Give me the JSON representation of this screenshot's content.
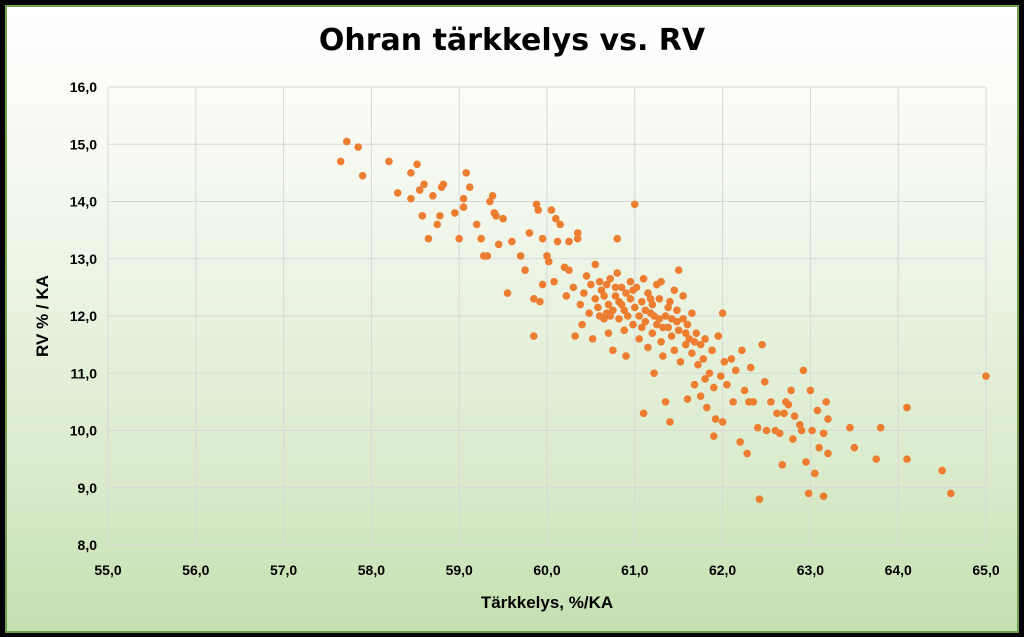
{
  "chart_data": {
    "type": "scatter",
    "title": "Ohran tärkkelys vs. RV",
    "xlabel": "Tärkkelys, %/KA",
    "ylabel": "RV % / KA",
    "xlim": [
      55,
      65
    ],
    "ylim": [
      8,
      16
    ],
    "x_ticks": [
      "55,0",
      "56,0",
      "57,0",
      "58,0",
      "59,0",
      "60,0",
      "61,0",
      "62,0",
      "63,0",
      "64,0",
      "65,0"
    ],
    "y_ticks": [
      "8,0",
      "9,0",
      "10,0",
      "11,0",
      "12,0",
      "13,0",
      "14,0",
      "15,0",
      "16,0"
    ],
    "grid": true,
    "legend": "none",
    "point_color": "#ed7d31",
    "points": [
      [
        57.65,
        14.7
      ],
      [
        57.72,
        15.05
      ],
      [
        57.85,
        14.95
      ],
      [
        57.9,
        14.45
      ],
      [
        58.2,
        14.7
      ],
      [
        58.3,
        14.15
      ],
      [
        58.45,
        14.5
      ],
      [
        58.45,
        14.05
      ],
      [
        58.52,
        14.65
      ],
      [
        58.55,
        14.2
      ],
      [
        58.58,
        13.75
      ],
      [
        58.6,
        14.3
      ],
      [
        58.65,
        13.35
      ],
      [
        58.7,
        14.1
      ],
      [
        58.75,
        13.6
      ],
      [
        58.78,
        13.75
      ],
      [
        58.8,
        14.25
      ],
      [
        58.82,
        14.3
      ],
      [
        58.95,
        13.8
      ],
      [
        59.0,
        13.35
      ],
      [
        59.05,
        14.05
      ],
      [
        59.05,
        13.9
      ],
      [
        59.08,
        14.5
      ],
      [
        59.12,
        14.25
      ],
      [
        59.2,
        13.6
      ],
      [
        59.25,
        13.35
      ],
      [
        59.28,
        13.05
      ],
      [
        59.32,
        13.05
      ],
      [
        59.35,
        14.0
      ],
      [
        59.38,
        14.1
      ],
      [
        59.4,
        13.8
      ],
      [
        59.42,
        13.75
      ],
      [
        59.45,
        13.25
      ],
      [
        59.5,
        13.7
      ],
      [
        59.55,
        12.4
      ],
      [
        59.6,
        13.3
      ],
      [
        59.7,
        13.05
      ],
      [
        59.75,
        12.8
      ],
      [
        59.8,
        13.45
      ],
      [
        59.85,
        12.3
      ],
      [
        59.85,
        11.65
      ],
      [
        59.88,
        13.95
      ],
      [
        59.9,
        13.85
      ],
      [
        59.92,
        12.25
      ],
      [
        59.95,
        12.55
      ],
      [
        59.95,
        13.35
      ],
      [
        60.0,
        13.05
      ],
      [
        60.02,
        12.95
      ],
      [
        60.05,
        13.85
      ],
      [
        60.08,
        12.6
      ],
      [
        60.1,
        13.7
      ],
      [
        60.12,
        13.3
      ],
      [
        60.15,
        13.6
      ],
      [
        60.2,
        12.85
      ],
      [
        60.22,
        12.35
      ],
      [
        60.25,
        12.8
      ],
      [
        60.25,
        13.3
      ],
      [
        60.3,
        12.5
      ],
      [
        60.32,
        11.65
      ],
      [
        60.35,
        13.45
      ],
      [
        60.35,
        13.35
      ],
      [
        60.38,
        12.2
      ],
      [
        60.4,
        11.85
      ],
      [
        60.42,
        12.4
      ],
      [
        60.45,
        12.7
      ],
      [
        60.48,
        12.05
      ],
      [
        60.5,
        12.55
      ],
      [
        60.52,
        11.6
      ],
      [
        60.55,
        12.9
      ],
      [
        60.55,
        12.3
      ],
      [
        60.6,
        12.6
      ],
      [
        60.6,
        12.0
      ],
      [
        60.62,
        12.45
      ],
      [
        60.65,
        12.35
      ],
      [
        60.65,
        11.95
      ],
      [
        60.68,
        12.55
      ],
      [
        60.7,
        12.2
      ],
      [
        60.7,
        11.7
      ],
      [
        60.72,
        12.65
      ],
      [
        60.75,
        12.1
      ],
      [
        60.75,
        11.4
      ],
      [
        60.78,
        12.35
      ],
      [
        60.8,
        12.75
      ],
      [
        60.8,
        13.35
      ],
      [
        60.82,
        11.95
      ],
      [
        60.85,
        12.5
      ],
      [
        60.85,
        12.2
      ],
      [
        60.88,
        11.75
      ],
      [
        60.9,
        12.4
      ],
      [
        60.9,
        11.3
      ],
      [
        60.92,
        12.0
      ],
      [
        60.95,
        12.3
      ],
      [
        60.95,
        12.6
      ],
      [
        60.98,
        11.85
      ],
      [
        61.0,
        12.15
      ],
      [
        61.0,
        13.95
      ],
      [
        61.02,
        12.5
      ],
      [
        61.05,
        12.0
      ],
      [
        61.05,
        11.6
      ],
      [
        61.08,
        12.25
      ],
      [
        61.1,
        12.65
      ],
      [
        61.1,
        10.3
      ],
      [
        61.12,
        11.9
      ],
      [
        61.15,
        12.4
      ],
      [
        61.15,
        11.45
      ],
      [
        61.18,
        12.05
      ],
      [
        61.2,
        12.2
      ],
      [
        61.2,
        11.7
      ],
      [
        61.22,
        11.0
      ],
      [
        61.25,
        12.55
      ],
      [
        61.25,
        11.85
      ],
      [
        61.28,
        12.3
      ],
      [
        61.3,
        11.55
      ],
      [
        61.3,
        12.6
      ],
      [
        61.32,
        11.3
      ],
      [
        61.35,
        12.0
      ],
      [
        61.35,
        10.5
      ],
      [
        61.38,
        11.8
      ],
      [
        61.4,
        12.25
      ],
      [
        61.4,
        10.15
      ],
      [
        61.42,
        11.65
      ],
      [
        61.45,
        12.45
      ],
      [
        61.45,
        11.4
      ],
      [
        61.48,
        12.1
      ],
      [
        61.5,
        12.8
      ],
      [
        61.5,
        11.75
      ],
      [
        61.52,
        11.2
      ],
      [
        61.55,
        11.95
      ],
      [
        61.55,
        12.35
      ],
      [
        61.58,
        11.5
      ],
      [
        61.6,
        11.85
      ],
      [
        61.6,
        10.55
      ],
      [
        61.62,
        11.6
      ],
      [
        61.65,
        11.35
      ],
      [
        61.65,
        12.05
      ],
      [
        61.68,
        10.8
      ],
      [
        61.7,
        11.7
      ],
      [
        61.72,
        11.15
      ],
      [
        61.75,
        10.6
      ],
      [
        61.75,
        11.5
      ],
      [
        61.78,
        11.25
      ],
      [
        61.8,
        10.9
      ],
      [
        61.8,
        11.6
      ],
      [
        61.82,
        10.4
      ],
      [
        61.85,
        11.0
      ],
      [
        61.88,
        11.4
      ],
      [
        61.9,
        10.75
      ],
      [
        61.9,
        9.9
      ],
      [
        61.92,
        10.2
      ],
      [
        61.95,
        11.65
      ],
      [
        61.98,
        10.95
      ],
      [
        62.0,
        12.05
      ],
      [
        62.0,
        10.15
      ],
      [
        62.02,
        11.2
      ],
      [
        62.05,
        10.8
      ],
      [
        62.1,
        11.25
      ],
      [
        62.12,
        10.5
      ],
      [
        62.15,
        11.05
      ],
      [
        62.2,
        9.8
      ],
      [
        62.22,
        11.4
      ],
      [
        62.25,
        10.7
      ],
      [
        62.28,
        9.6
      ],
      [
        62.3,
        10.5
      ],
      [
        62.32,
        11.1
      ],
      [
        62.35,
        10.5
      ],
      [
        62.4,
        10.05
      ],
      [
        62.42,
        8.8
      ],
      [
        62.45,
        11.5
      ],
      [
        62.48,
        10.85
      ],
      [
        62.5,
        10.0
      ],
      [
        62.55,
        10.5
      ],
      [
        62.6,
        10.0
      ],
      [
        62.62,
        10.3
      ],
      [
        62.65,
        9.95
      ],
      [
        62.68,
        9.4
      ],
      [
        62.7,
        10.3
      ],
      [
        62.72,
        10.5
      ],
      [
        62.75,
        10.45
      ],
      [
        62.78,
        10.7
      ],
      [
        62.8,
        9.85
      ],
      [
        62.82,
        10.25
      ],
      [
        62.88,
        10.1
      ],
      [
        62.9,
        10.0
      ],
      [
        62.92,
        11.05
      ],
      [
        62.95,
        9.45
      ],
      [
        62.98,
        8.9
      ],
      [
        63.0,
        10.7
      ],
      [
        63.02,
        10.0
      ],
      [
        63.05,
        9.25
      ],
      [
        63.08,
        10.35
      ],
      [
        63.1,
        9.7
      ],
      [
        63.15,
        9.95
      ],
      [
        63.15,
        8.85
      ],
      [
        63.18,
        10.5
      ],
      [
        63.2,
        9.6
      ],
      [
        63.2,
        10.2
      ],
      [
        63.45,
        10.05
      ],
      [
        63.5,
        9.7
      ],
      [
        63.75,
        9.5
      ],
      [
        63.8,
        10.05
      ],
      [
        64.1,
        10.4
      ],
      [
        64.1,
        9.5
      ],
      [
        64.5,
        9.3
      ],
      [
        64.6,
        8.9
      ],
      [
        65.0,
        10.95
      ],
      [
        60.58,
        12.15
      ],
      [
        60.68,
        12.05
      ],
      [
        60.78,
        12.5
      ],
      [
        60.88,
        12.1
      ],
      [
        60.98,
        12.45
      ],
      [
        61.08,
        11.8
      ],
      [
        61.18,
        12.3
      ],
      [
        61.28,
        11.95
      ],
      [
        61.38,
        12.15
      ],
      [
        61.48,
        11.9
      ],
      [
        61.58,
        11.7
      ],
      [
        61.68,
        11.55
      ],
      [
        61.12,
        12.1
      ],
      [
        61.22,
        12.0
      ],
      [
        61.32,
        11.8
      ],
      [
        61.42,
        11.95
      ],
      [
        60.72,
        12.0
      ],
      [
        60.82,
        12.25
      ]
    ]
  }
}
